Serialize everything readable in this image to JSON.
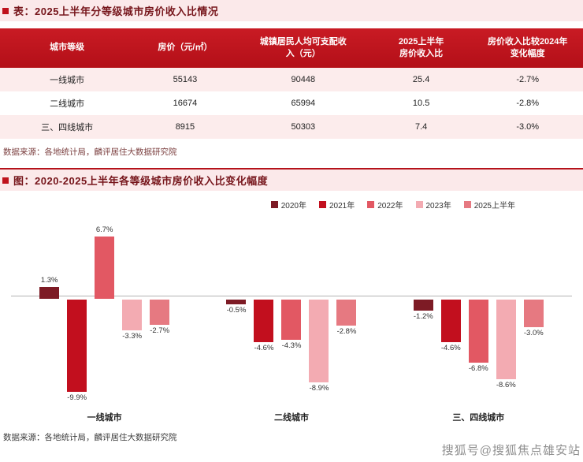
{
  "page": {
    "section1_title": "表：2025上半年分等级城市房价收入比情况",
    "section2_title": "图：2020-2025上半年各等级城市房价收入比变化幅度",
    "table_source_note": "数据来源：各地统计局，麟评居住大数据研究院",
    "chart_source_note": "数据来源：各地统计局，麟评居住大数据研究院",
    "watermark": "搜狐号@搜狐焦点雄安站"
  },
  "colors": {
    "header_red": "#bf121c",
    "strip_pink": "#fbe9ea",
    "row_pink": "#fcecec",
    "title_maroon": "#76151b",
    "divider_red": "#b5121b"
  },
  "table": {
    "headers": [
      {
        "lines": [
          "城市等级"
        ]
      },
      {
        "lines": [
          "房价（元/㎡）"
        ]
      },
      {
        "lines": [
          "城镇居民人均可支配收",
          "入（元）"
        ]
      },
      {
        "lines": [
          "2025上半年",
          "房价收入比"
        ]
      },
      {
        "lines": [
          "房价收入比较2024年",
          "变化幅度"
        ]
      }
    ],
    "col_widths": [
      "23%",
      "17.5%",
      "23%",
      "17.5%",
      "19%"
    ],
    "rows": [
      [
        "一线城市",
        "55143",
        "90448",
        "25.4",
        "-2.7%"
      ],
      [
        "二线城市",
        "16674",
        "65994",
        "10.5",
        "-2.8%"
      ],
      [
        "三、四线城市",
        "8915",
        "50303",
        "7.4",
        "-3.0%"
      ]
    ]
  },
  "chart_data": {
    "type": "bar",
    "title": "2020-2025上半年各等级城市房价收入比变化幅度",
    "xlabel": "",
    "ylabel": "",
    "ylim": [
      -11,
      8
    ],
    "grid": false,
    "legend_position": "top-right",
    "value_label_suffix": "%",
    "categories": [
      "一线城市",
      "二线城市",
      "三、四线城市"
    ],
    "series": [
      {
        "name": "2020年",
        "color": "#7d1b25",
        "values": [
          1.3,
          -0.5,
          -1.2
        ]
      },
      {
        "name": "2021年",
        "color": "#c20f1e",
        "values": [
          -9.9,
          -4.6,
          -4.6
        ]
      },
      {
        "name": "2022年",
        "color": "#e25863",
        "values": [
          6.7,
          -4.3,
          -6.8
        ]
      },
      {
        "name": "2023年",
        "color": "#f3abb2",
        "values": [
          -3.3,
          -8.9,
          -8.6
        ]
      },
      {
        "name": "2025上半年",
        "color": "#e67981",
        "values": [
          -2.7,
          -2.8,
          -3.0
        ]
      }
    ]
  }
}
